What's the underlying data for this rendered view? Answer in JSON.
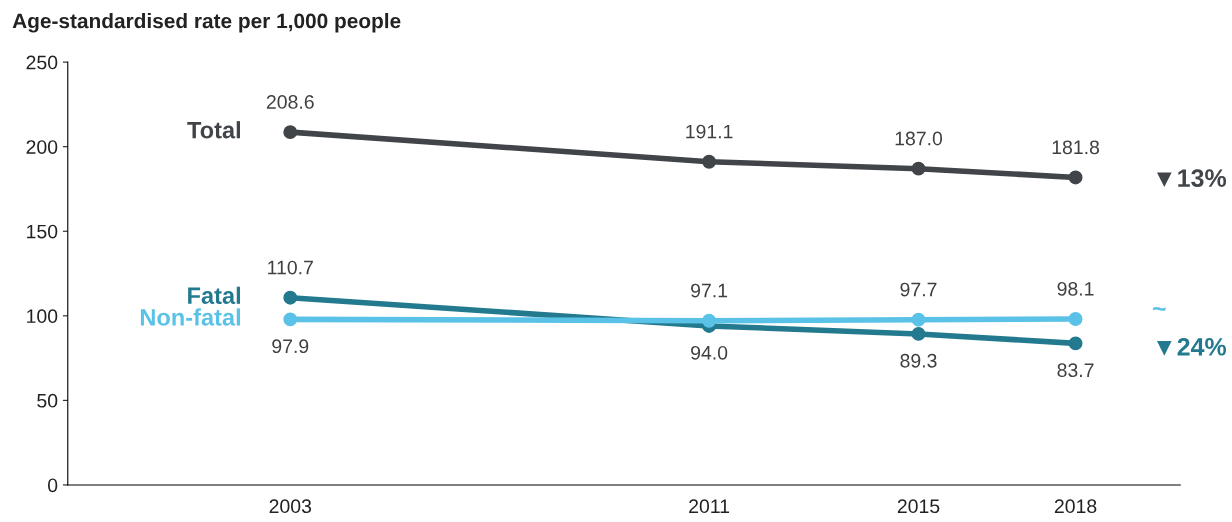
{
  "chart_data": {
    "type": "line",
    "ylabel": "Age-standardised rate per 1,000 people",
    "x": [
      2003,
      2011,
      2015,
      2018
    ],
    "series": [
      {
        "name": "Total",
        "color": "#414549",
        "values": [
          208.6,
          191.1,
          187.0,
          181.8
        ],
        "value_labels": [
          "208.6",
          "191.1",
          "187.0",
          "181.8"
        ]
      },
      {
        "name": "Fatal",
        "color": "#237a8f",
        "values": [
          110.7,
          94.0,
          89.3,
          83.7
        ],
        "value_labels": [
          "110.7",
          "94.0",
          "89.3",
          "83.7"
        ]
      },
      {
        "name": "Non-fatal",
        "color": "#5bc2e7",
        "values": [
          97.9,
          97.1,
          97.7,
          98.1
        ],
        "value_labels": [
          "97.9",
          "97.1",
          "97.7",
          "98.1"
        ]
      }
    ],
    "xlim": [
      1998.75,
      2020
    ],
    "xticks": [
      2003,
      2011,
      2015,
      2018
    ],
    "ylim": [
      0,
      250
    ],
    "yticks": [
      0,
      50,
      100,
      150,
      200,
      250
    ],
    "marker": "circle",
    "line_style": "solid",
    "grid": false,
    "legend": false,
    "annotations": [
      "▼13%",
      "~",
      "▼24%"
    ]
  }
}
